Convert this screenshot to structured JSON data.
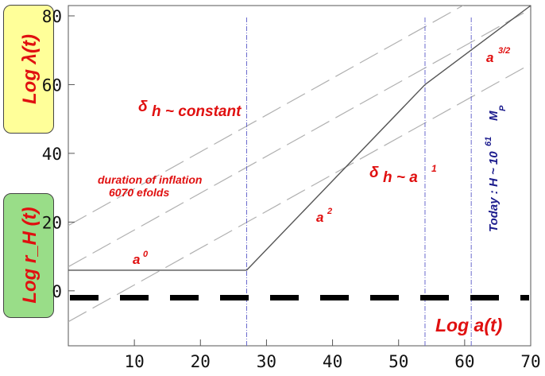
{
  "chart_data": {
    "type": "line",
    "xlabel": "Log a(t)",
    "ylabels": [
      "Log λ(t)",
      "Log r_H (t)"
    ],
    "xlim": [
      0,
      70
    ],
    "ylim": [
      -16,
      83
    ],
    "x_ticks": [
      "10",
      "20",
      "30",
      "40",
      "50",
      "60",
      "70"
    ],
    "y_ticks": [
      "0",
      "20",
      "40",
      "60",
      "80"
    ],
    "grid": false,
    "hubble_radius_segments": [
      {
        "points": [
          [
            0,
            6
          ],
          [
            27,
            6
          ]
        ],
        "label": "a⁰"
      },
      {
        "points": [
          [
            27,
            6
          ],
          [
            54,
            60
          ]
        ],
        "label": "a²"
      },
      {
        "points": [
          [
            54,
            60
          ],
          [
            70,
            83
          ]
        ],
        "label": "a^{3/2}"
      }
    ],
    "wavelength_lines": [
      {
        "points": [
          [
            0,
            -9
          ],
          [
            70,
            66
          ]
        ]
      },
      {
        "points": [
          [
            0,
            7
          ],
          [
            70,
            82
          ]
        ]
      },
      {
        "points": [
          [
            0,
            19
          ],
          [
            70,
            94
          ]
        ]
      }
    ],
    "planck_length_line": {
      "y": -2
    },
    "vertical_markers": [
      27,
      54,
      61
    ],
    "annotations": {
      "dh_constant": {
        "prefix": "δ",
        "text": "h ~ constant"
      },
      "dh_a1": {
        "prefix": "δ",
        "text": "h ~ a",
        "sup": "1"
      },
      "duration_1": "duration of inflation",
      "duration_2": "6070 efolds",
      "a0_base": "a",
      "a0_sup": "0",
      "a2_base": "a",
      "a2_sup": "2",
      "a32_base": "a",
      "a32_sup": "3/2",
      "today_text": "Today : H ~ 10",
      "today_exp": "61",
      "today_mp": "M",
      "today_mp_sub": "P"
    },
    "colors": {
      "hubble": "#555555",
      "wavelength": "#b0b0b0",
      "marker": "#6a6acd",
      "planck": "#000000",
      "label_red": "#e01010",
      "label_blue": "#1a1a8c",
      "box_yellow": "#ffff99",
      "box_green": "#99dd88"
    }
  }
}
